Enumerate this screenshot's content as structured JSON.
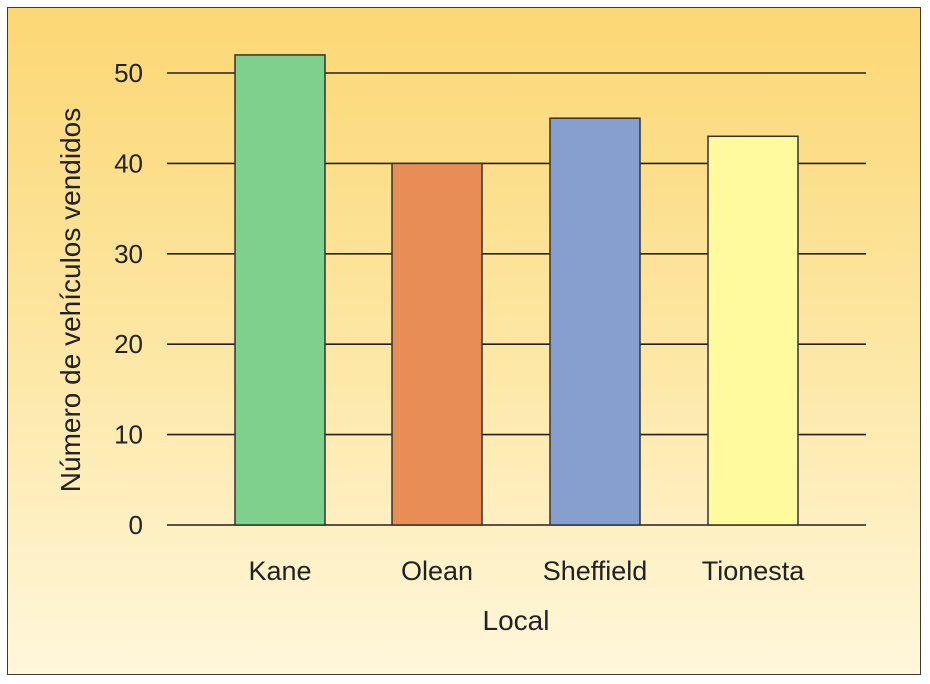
{
  "chart_data": {
    "type": "bar",
    "categories": [
      "Kane",
      "Olean",
      "Sheffield",
      "Tionesta"
    ],
    "values": [
      52,
      40,
      45,
      43
    ],
    "xlabel": "Local",
    "ylabel": "Número de vehículos vendidos",
    "ylim": [
      0,
      50
    ],
    "yticks": [
      0,
      10,
      20,
      30,
      40,
      50
    ],
    "grid": true,
    "colors": {
      "bars": [
        "#7fd08c",
        "#e88d55",
        "#879fce",
        "#fffa9e"
      ],
      "background_top": "#fcd774",
      "background_bottom": "#fff7dc",
      "gridline": "#222222",
      "bar_outline": "#333333"
    }
  }
}
